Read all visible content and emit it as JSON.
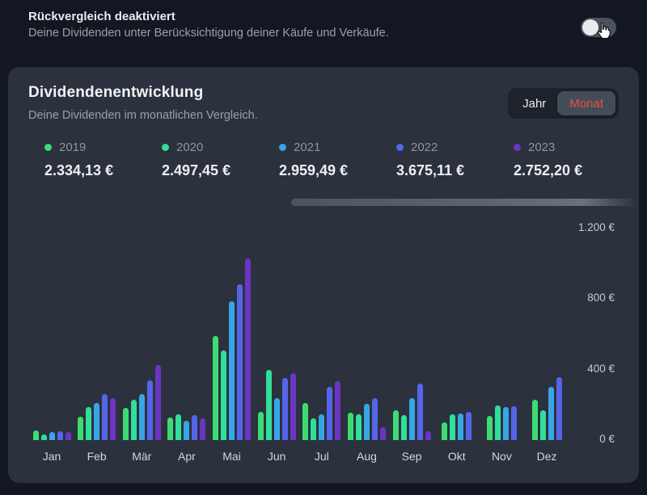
{
  "header": {
    "title": "Rückvergleich deaktiviert",
    "subtitle": "Deine Dividenden unter Berücksichtigung deiner Käufe und Verkäufe.",
    "toggle": {
      "state": "off"
    }
  },
  "card": {
    "title": "Dividendenentwicklung",
    "subtitle": "Deine Dividenden im monatlichen Vergleich.",
    "view_switch": {
      "options": [
        "Jahr",
        "Monat"
      ],
      "selected": "Monat",
      "selected_color": "#e5533e"
    },
    "legend": [
      {
        "year": "2019",
        "total": "2.334,13 €",
        "color": "#3ddc72"
      },
      {
        "year": "2020",
        "total": "2.497,45 €",
        "color": "#2fdf9a"
      },
      {
        "year": "2021",
        "total": "2.959,49 €",
        "color": "#38a5e6"
      },
      {
        "year": "2022",
        "total": "3.675,11 €",
        "color": "#5565ea"
      },
      {
        "year": "2023",
        "total": "2.752,20 €",
        "color": "#6a35c2"
      }
    ]
  },
  "chart_data": {
    "type": "bar",
    "title": "Dividendenentwicklung",
    "categories": [
      "Jan",
      "Feb",
      "Mär",
      "Apr",
      "Mai",
      "Jun",
      "Jul",
      "Aug",
      "Sep",
      "Okt",
      "Nov",
      "Dez"
    ],
    "series": [
      {
        "name": "2019",
        "color": "#3ddc72",
        "values": [
          55,
          133,
          183,
          129,
          590,
          160,
          210,
          157,
          168,
          102,
          138,
          229
        ]
      },
      {
        "name": "2020",
        "color": "#2fdf9a",
        "values": [
          30,
          186,
          229,
          148,
          507,
          398,
          122,
          148,
          142,
          145,
          196,
          170
        ]
      },
      {
        "name": "2021",
        "color": "#38a5e6",
        "values": [
          46,
          209,
          259,
          110,
          786,
          238,
          145,
          206,
          240,
          151,
          187,
          300
        ]
      },
      {
        "name": "2022",
        "color": "#5565ea",
        "values": [
          50,
          261,
          340,
          143,
          884,
          352,
          302,
          240,
          320,
          160,
          191,
          356
        ]
      },
      {
        "name": "2023",
        "color": "#6a35c2",
        "values": [
          47,
          239,
          424,
          122,
          1029,
          380,
          332,
          72,
          50,
          null,
          null,
          null
        ]
      }
    ],
    "ytick_labels": [
      "0 €",
      "400 €",
      "800 €",
      "1.200 €"
    ],
    "ylim": [
      0,
      1200
    ],
    "grid": false,
    "legend_position": "top",
    "currency": "€"
  }
}
